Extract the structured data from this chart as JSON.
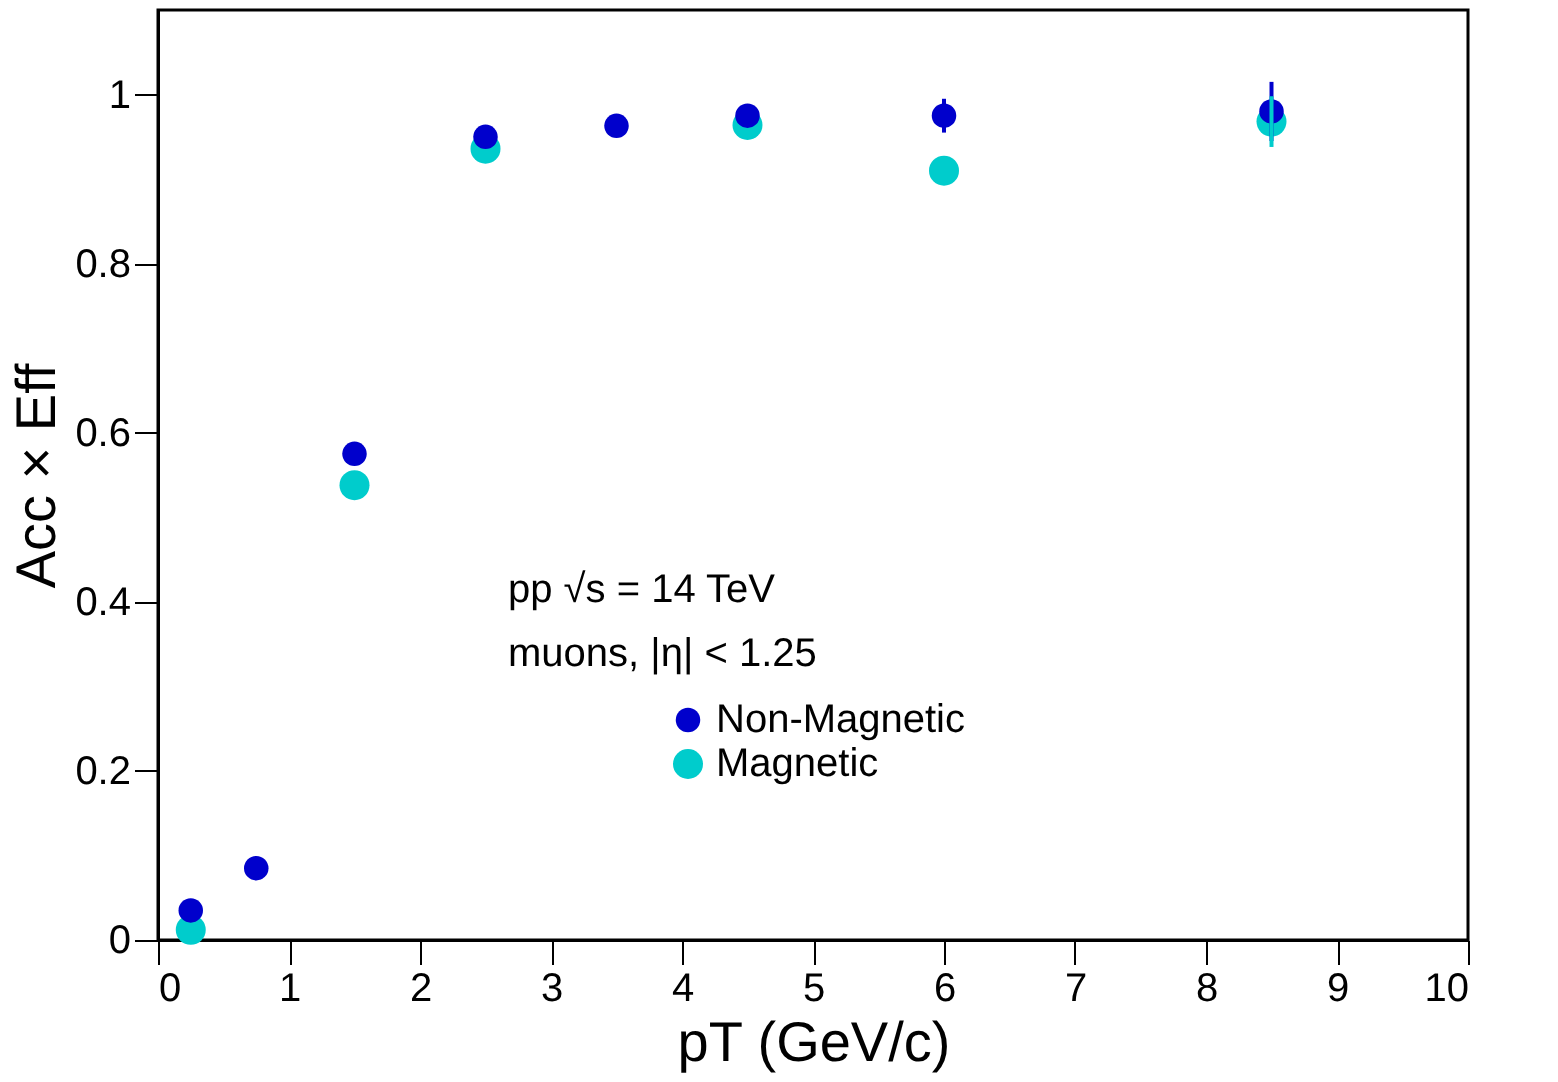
{
  "chart_data": {
    "type": "scatter",
    "xlabel": "pT (GeV/c)",
    "ylabel": "Acc × Eff",
    "x": [
      0.25,
      0.75,
      1.5,
      2.5,
      3.5,
      4.5,
      6,
      8.5
    ],
    "xlim": [
      0,
      10
    ],
    "xticks": [
      0,
      1,
      2,
      3,
      4,
      5,
      6,
      7,
      8,
      9,
      10
    ],
    "ylim": [
      0,
      1.1
    ],
    "yticks": [
      0,
      0.2,
      0.4,
      0.6,
      0.8,
      1
    ],
    "series": [
      {
        "name": "Non-Magnetic",
        "color": "#0000cc",
        "values": [
          0.035,
          0.085,
          0.575,
          0.95,
          0.963,
          0.975,
          0.975,
          0.98
        ],
        "errors": [
          null,
          null,
          null,
          null,
          null,
          null,
          0.02,
          0.035
        ]
      },
      {
        "name": "Magnetic",
        "color": "#00cccc",
        "values": [
          0.012,
          null,
          0.538,
          0.936,
          null,
          0.964,
          0.91,
          0.968
        ],
        "errors": [
          null,
          null,
          null,
          null,
          null,
          null,
          0.015,
          0.03
        ]
      }
    ],
    "annotations": [
      "pp √s = 14 TeV",
      "muons, |η| < 1.25"
    ],
    "legend": "bottom right",
    "marker": "circle",
    "grid": false
  }
}
